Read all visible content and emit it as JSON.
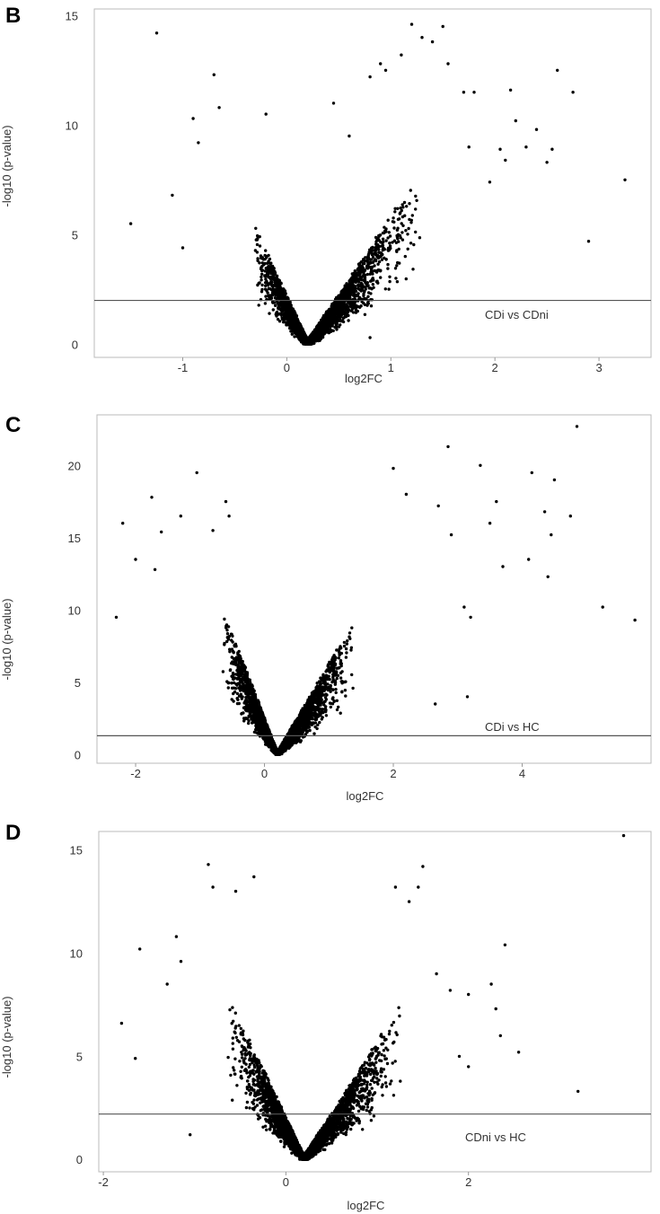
{
  "chart_data": [
    {
      "type": "scatter",
      "panel_label": "B",
      "title": "",
      "annotation": "CDi vs CDni",
      "xlabel": "log2FC",
      "ylabel": "-log10 (p-value)",
      "xlim": [
        -1.85,
        3.5
      ],
      "ylim": [
        -0.6,
        15.3
      ],
      "xticks": [
        -1,
        0,
        1,
        2,
        3
      ],
      "yticks": [
        0,
        5,
        10,
        15
      ],
      "threshold": 2,
      "grid": false,
      "legend": "none",
      "point_color": "#000000",
      "line_color": "#555555",
      "outliers": [
        [
          -1.5,
          5.5
        ],
        [
          -1.25,
          14.2
        ],
        [
          -1.1,
          6.8
        ],
        [
          -0.9,
          10.3
        ],
        [
          -0.7,
          12.3
        ],
        [
          -0.65,
          10.8
        ],
        [
          -0.85,
          9.2
        ],
        [
          -0.2,
          10.5
        ],
        [
          0.45,
          11.0
        ],
        [
          0.6,
          9.5
        ],
        [
          0.8,
          12.2
        ],
        [
          0.9,
          12.8
        ],
        [
          0.95,
          12.5
        ],
        [
          1.1,
          13.2
        ],
        [
          1.2,
          14.6
        ],
        [
          1.3,
          14.0
        ],
        [
          1.4,
          13.8
        ],
        [
          1.5,
          14.5
        ],
        [
          1.55,
          12.8
        ],
        [
          1.7,
          11.5
        ],
        [
          1.8,
          11.5
        ],
        [
          2.05,
          8.9
        ],
        [
          2.15,
          11.6
        ],
        [
          2.2,
          10.2
        ],
        [
          2.3,
          9.0
        ],
        [
          2.4,
          9.8
        ],
        [
          2.5,
          8.3
        ],
        [
          2.55,
          8.9
        ],
        [
          2.6,
          12.5
        ],
        [
          2.75,
          11.5
        ],
        [
          2.9,
          4.7
        ],
        [
          3.25,
          7.5
        ],
        [
          1.95,
          7.4
        ],
        [
          2.1,
          8.4
        ],
        [
          1.75,
          9.0
        ],
        [
          -1.0,
          4.4
        ],
        [
          0.1,
          0.4
        ],
        [
          0.8,
          0.3
        ]
      ],
      "cloud": {
        "n": 4200,
        "center": 0.2,
        "slope_left": 10.5,
        "slope_right": 7.2,
        "spread_left": 0.5,
        "spread_right": 1.0,
        "ymax": 12
      },
      "seed": 11
    },
    {
      "type": "scatter",
      "panel_label": "C",
      "title": "",
      "annotation": "CDi vs HC",
      "xlabel": "log2FC",
      "ylabel": "-log10 (p-value)",
      "xlim": [
        -2.6,
        6.0
      ],
      "ylim": [
        -0.6,
        23.5
      ],
      "xticks": [
        -2,
        0,
        2,
        4
      ],
      "yticks": [
        0,
        5,
        10,
        15,
        20
      ],
      "threshold": 1.3,
      "grid": false,
      "legend": "none",
      "point_color": "#000000",
      "line_color": "#555555",
      "outliers": [
        [
          -2.3,
          9.5
        ],
        [
          -2.2,
          16.0
        ],
        [
          -1.75,
          17.8
        ],
        [
          -1.6,
          15.4
        ],
        [
          -1.3,
          16.5
        ],
        [
          -1.05,
          19.5
        ],
        [
          -0.8,
          15.5
        ],
        [
          -0.6,
          17.5
        ],
        [
          -0.55,
          16.5
        ],
        [
          -2.0,
          13.5
        ],
        [
          -1.7,
          12.8
        ],
        [
          2.0,
          19.8
        ],
        [
          2.2,
          18.0
        ],
        [
          2.85,
          21.3
        ],
        [
          3.35,
          20.0
        ],
        [
          3.6,
          17.5
        ],
        [
          3.7,
          13.0
        ],
        [
          4.1,
          13.5
        ],
        [
          4.15,
          19.5
        ],
        [
          4.35,
          16.8
        ],
        [
          4.5,
          19.0
        ],
        [
          4.75,
          16.5
        ],
        [
          4.85,
          22.7
        ],
        [
          5.25,
          10.2
        ],
        [
          5.75,
          9.3
        ],
        [
          4.4,
          12.3
        ],
        [
          4.45,
          15.2
        ],
        [
          3.5,
          16.0
        ],
        [
          2.7,
          17.2
        ],
        [
          2.9,
          15.2
        ],
        [
          3.1,
          10.2
        ],
        [
          3.2,
          9.5
        ],
        [
          3.15,
          4.0
        ],
        [
          2.65,
          3.5
        ]
      ],
      "cloud": {
        "n": 5000,
        "center": 0.2,
        "slope_left": 12.0,
        "slope_right": 7.8,
        "spread_left": 0.8,
        "spread_right": 1.1,
        "ymax": 14
      },
      "seed": 23
    },
    {
      "type": "scatter",
      "panel_label": "D",
      "title": "",
      "annotation": "CDni vs HC",
      "xlabel": "log2FC",
      "ylabel": "-log10 (p-value)",
      "xlim": [
        -2.05,
        4.0
      ],
      "ylim": [
        -0.6,
        15.9
      ],
      "xticks": [
        -2,
        0,
        2
      ],
      "yticks": [
        0,
        5,
        10,
        15
      ],
      "threshold": 2.2,
      "grid": false,
      "legend": "none",
      "point_color": "#000000",
      "line_color": "#555555",
      "outliers": [
        [
          -1.8,
          6.6
        ],
        [
          -1.65,
          4.9
        ],
        [
          -1.6,
          10.2
        ],
        [
          -1.2,
          10.8
        ],
        [
          -1.15,
          9.6
        ],
        [
          -0.85,
          14.3
        ],
        [
          -0.8,
          13.2
        ],
        [
          -0.55,
          13.0
        ],
        [
          -0.35,
          13.7
        ],
        [
          -1.3,
          8.5
        ],
        [
          1.2,
          13.2
        ],
        [
          1.5,
          14.2
        ],
        [
          1.45,
          13.2
        ],
        [
          1.35,
          12.5
        ],
        [
          1.65,
          9.0
        ],
        [
          1.8,
          8.2
        ],
        [
          2.0,
          8.0
        ],
        [
          2.25,
          8.5
        ],
        [
          2.3,
          7.3
        ],
        [
          2.4,
          10.4
        ],
        [
          2.35,
          6.0
        ],
        [
          2.55,
          5.2
        ],
        [
          3.2,
          3.3
        ],
        [
          3.7,
          15.7
        ],
        [
          1.9,
          5.0
        ],
        [
          2.0,
          4.5
        ],
        [
          -1.05,
          1.2
        ]
      ],
      "cloud": {
        "n": 4500,
        "center": 0.2,
        "slope_left": 9.5,
        "slope_right": 7.0,
        "spread_left": 0.8,
        "spread_right": 1.0,
        "ymax": 11
      },
      "seed": 37
    }
  ]
}
